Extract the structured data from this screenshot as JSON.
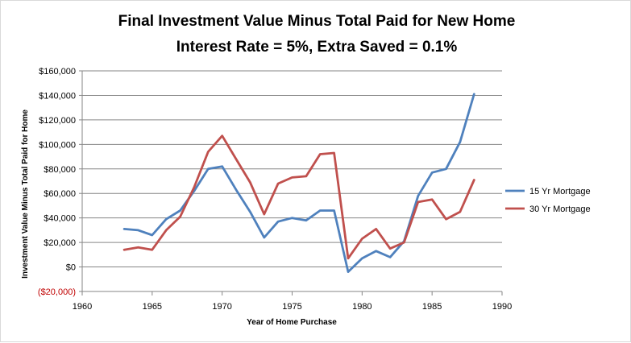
{
  "chart_data": {
    "type": "line",
    "title": [
      "Final Investment Value Minus Total Paid for New Home",
      "Interest Rate = 5%, Extra Saved = 0.1%"
    ],
    "xlabel": "Year of Home  Purchase",
    "ylabel": "Investment Value Minus Total Paid  for Home",
    "xlim": [
      1960,
      1990
    ],
    "xticks": [
      1960,
      1965,
      1970,
      1975,
      1980,
      1985,
      1990
    ],
    "ylim": [
      -20000,
      160000
    ],
    "yticks": [
      -20000,
      0,
      20000,
      40000,
      60000,
      80000,
      100000,
      120000,
      140000,
      160000
    ],
    "ytick_labels": [
      "($20,000)",
      "$0",
      "$20,000",
      "$40,000",
      "$60,000",
      "$80,000",
      "$100,000",
      "$120,000",
      "$140,000",
      "$160,000"
    ],
    "grid": "horizontal",
    "legend": "right",
    "x": [
      1963,
      1964,
      1965,
      1966,
      1967,
      1968,
      1969,
      1970,
      1971,
      1972,
      1973,
      1974,
      1975,
      1976,
      1977,
      1978,
      1979,
      1980,
      1981,
      1982,
      1983,
      1984,
      1985,
      1986,
      1987,
      1988
    ],
    "series": [
      {
        "name": "15 Yr Mortgage",
        "color": "#4f81bd",
        "values": [
          31000,
          30000,
          26000,
          39000,
          46000,
          62000,
          80000,
          82000,
          63000,
          45000,
          24000,
          37000,
          40000,
          38000,
          46000,
          46000,
          -4000,
          7000,
          13000,
          8000,
          21000,
          58000,
          77000,
          80000,
          102000,
          141000
        ]
      },
      {
        "name": "30 Yr Mortgage",
        "color": "#c0504d",
        "values": [
          14000,
          16000,
          14000,
          30000,
          41000,
          65000,
          94000,
          107000,
          88000,
          69000,
          43000,
          68000,
          73000,
          74000,
          92000,
          93000,
          7000,
          23000,
          31000,
          15000,
          20000,
          53000,
          55000,
          39000,
          45000,
          71000
        ]
      }
    ]
  }
}
